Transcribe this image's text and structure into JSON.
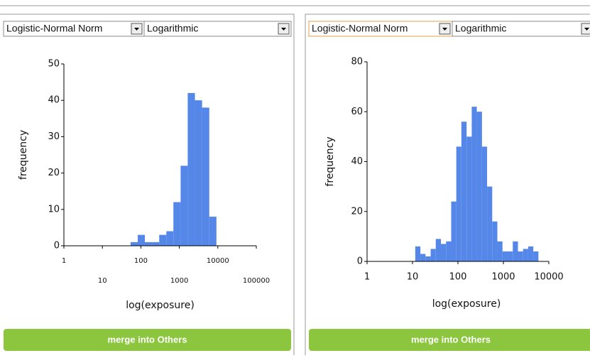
{
  "panels": [
    {
      "distribution": "Logistic-Normal Norm",
      "scale": "Logarithmic",
      "chart": {
        "type": "histogram",
        "x_label": "log(exposure)",
        "y_label": "frequency",
        "log_x": true,
        "bins": [
          54,
          83,
          127,
          195,
          300,
          460,
          700,
          1080,
          1650,
          2540,
          3900,
          6000,
          9200
        ],
        "values": [
          1,
          3,
          1,
          1,
          3,
          4,
          12,
          22,
          42,
          40,
          38,
          8
        ],
        "color": "#5587e8",
        "xlim": [
          1,
          100000
        ],
        "xticks": [
          1,
          10,
          100,
          1000,
          10000,
          100000
        ],
        "ylim": [
          0,
          50
        ],
        "yticks": [
          0,
          10,
          20,
          30,
          40,
          50
        ]
      },
      "button": "merge into Others"
    },
    {
      "distribution": "Logistic-Normal Norm",
      "scale": "Logarithmic",
      "chart": {
        "type": "histogram",
        "x_label": "log(exposure)",
        "y_label": "frequency",
        "log_x": true,
        "bins": [
          11.5,
          14.9,
          19.3,
          25.1,
          32.5,
          42.2,
          54.7,
          71,
          92,
          119,
          155,
          201,
          260,
          338,
          438,
          568,
          737,
          956,
          1240,
          1610,
          2090,
          2710,
          3510,
          4550,
          5900
        ],
        "values": [
          6,
          3,
          2,
          5,
          9,
          7,
          8,
          24,
          46,
          56,
          50,
          62,
          60,
          46,
          30,
          16,
          8,
          4,
          4,
          8,
          4,
          5,
          6,
          4
        ],
        "color": "#5587e8",
        "xlim": [
          1,
          10000
        ],
        "xticks": [
          1,
          10,
          100,
          1000,
          10000
        ],
        "ylim": [
          0,
          80
        ],
        "yticks": [
          0,
          20,
          40,
          60,
          80
        ]
      },
      "button": "merge into Others"
    }
  ]
}
